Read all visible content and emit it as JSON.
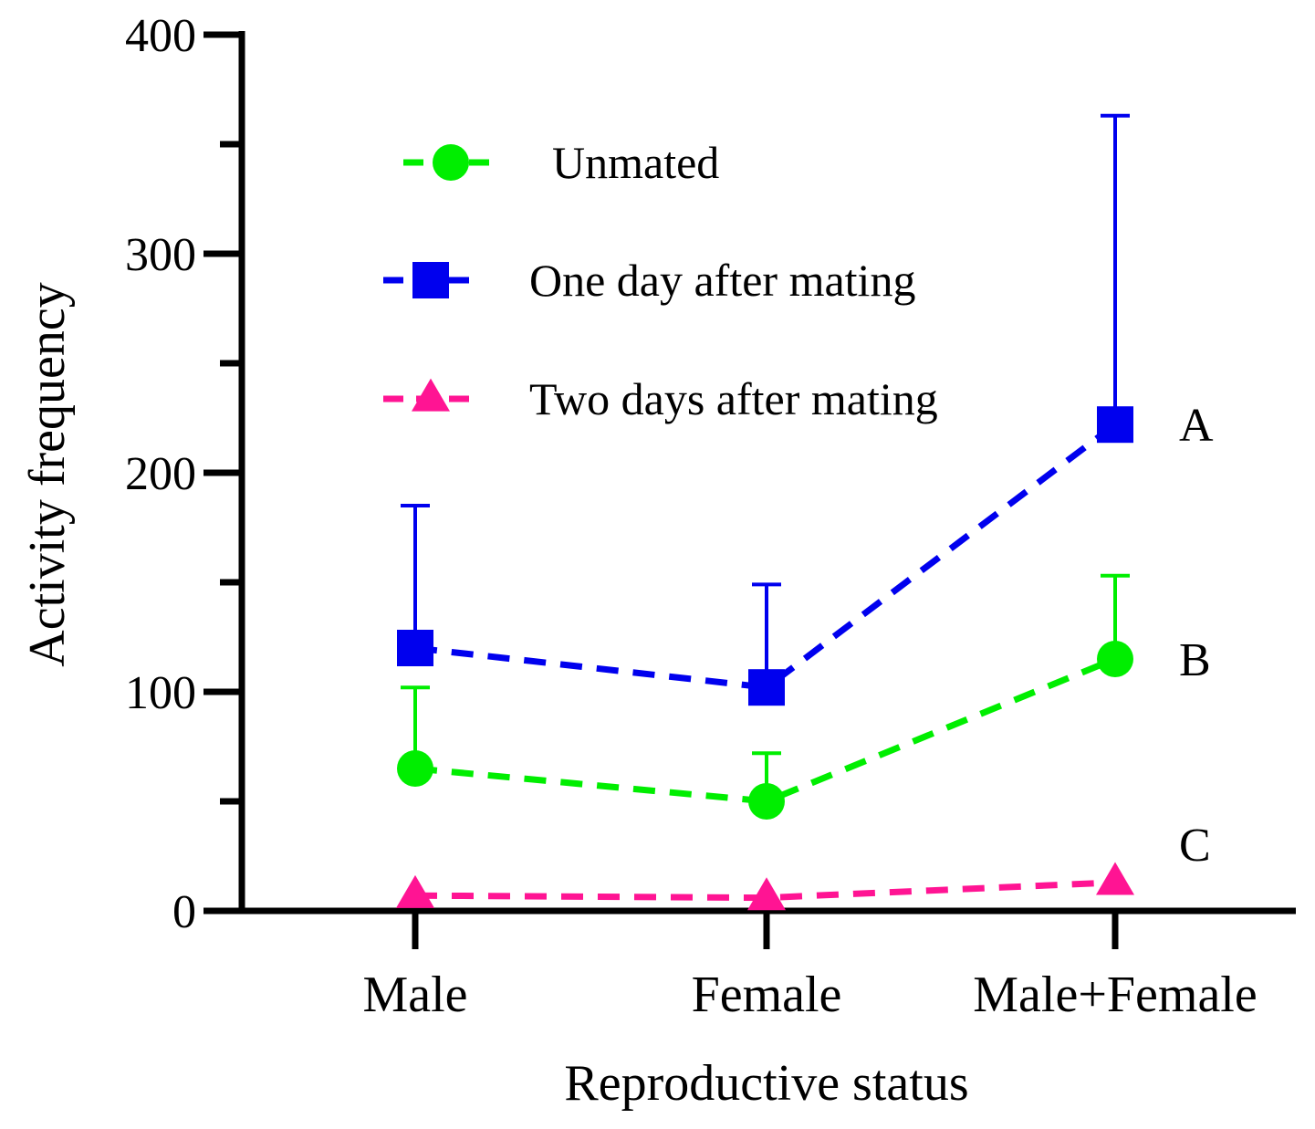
{
  "chart_data": {
    "type": "line",
    "xlabel": "Reproductive status",
    "ylabel": "Activity frequency",
    "categories": [
      "Male",
      "Female",
      "Male+Female"
    ],
    "ylim": [
      0,
      400
    ],
    "yticks": [
      0,
      100,
      200,
      300,
      400
    ],
    "yminor_ticks": [
      50,
      150,
      250,
      350
    ],
    "grid": false,
    "legend_position": "top-center",
    "series": [
      {
        "name": "Unmated",
        "color": "#00ee00",
        "marker": "circle",
        "values": [
          65,
          50,
          115
        ],
        "error_upper": [
          102,
          72,
          153
        ],
        "group_letter": "B"
      },
      {
        "name": "One day after mating",
        "color": "#0000ee",
        "marker": "square",
        "values": [
          120,
          102,
          222
        ],
        "error_upper": [
          185,
          149,
          363
        ],
        "group_letter": "A"
      },
      {
        "name": "Two days after mating",
        "color": "#ff1493",
        "marker": "triangle",
        "values": [
          7,
          6,
          13
        ],
        "error_upper": [
          null,
          null,
          null
        ],
        "group_letter": "C"
      }
    ]
  }
}
